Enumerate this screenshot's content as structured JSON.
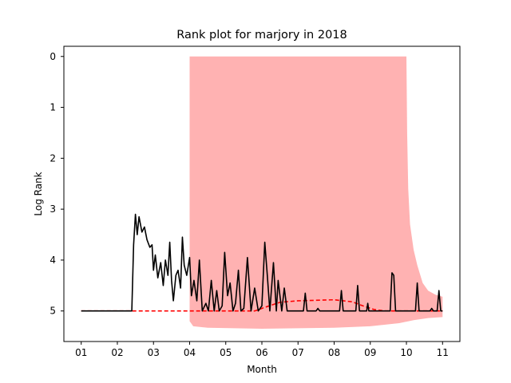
{
  "chart_data": {
    "type": "line",
    "title": "Rank plot for marjory in 2018",
    "xlabel": "Month",
    "ylabel": "Log Rank",
    "x_ticks": [
      {
        "value": 1,
        "label": "01"
      },
      {
        "value": 2,
        "label": "02"
      },
      {
        "value": 3,
        "label": "03"
      },
      {
        "value": 4,
        "label": "04"
      },
      {
        "value": 5,
        "label": "05"
      },
      {
        "value": 6,
        "label": "06"
      },
      {
        "value": 7,
        "label": "07"
      },
      {
        "value": 8,
        "label": "08"
      },
      {
        "value": 9,
        "label": "09"
      },
      {
        "value": 10,
        "label": "10"
      },
      {
        "value": 11,
        "label": "11"
      }
    ],
    "y_ticks": [
      {
        "value": 0,
        "label": "0"
      },
      {
        "value": 1,
        "label": "1"
      },
      {
        "value": 2,
        "label": "2"
      },
      {
        "value": 3,
        "label": "3"
      },
      {
        "value": 4,
        "label": "4"
      },
      {
        "value": 5,
        "label": "5"
      }
    ],
    "xlim": [
      0.52,
      11.48
    ],
    "ylim": [
      5.6,
      -0.2
    ],
    "y_inverted": true,
    "grid": false,
    "legend": "none",
    "series": [
      {
        "style": "solid",
        "color": "#000000",
        "points": [
          [
            1.0,
            5.0
          ],
          [
            2.4,
            5.0
          ],
          [
            2.45,
            3.7
          ],
          [
            2.5,
            3.1
          ],
          [
            2.55,
            3.5
          ],
          [
            2.6,
            3.15
          ],
          [
            2.68,
            3.45
          ],
          [
            2.75,
            3.35
          ],
          [
            2.82,
            3.6
          ],
          [
            2.9,
            3.75
          ],
          [
            2.96,
            3.7
          ],
          [
            3.0,
            4.2
          ],
          [
            3.05,
            3.9
          ],
          [
            3.12,
            4.35
          ],
          [
            3.2,
            4.05
          ],
          [
            3.27,
            4.5
          ],
          [
            3.33,
            4.0
          ],
          [
            3.4,
            4.3
          ],
          [
            3.45,
            3.65
          ],
          [
            3.5,
            4.4
          ],
          [
            3.55,
            4.8
          ],
          [
            3.62,
            4.3
          ],
          [
            3.68,
            4.2
          ],
          [
            3.75,
            4.55
          ],
          [
            3.8,
            3.55
          ],
          [
            3.85,
            4.1
          ],
          [
            3.92,
            4.3
          ],
          [
            4.0,
            3.95
          ],
          [
            4.05,
            4.7
          ],
          [
            4.12,
            4.4
          ],
          [
            4.2,
            4.8
          ],
          [
            4.27,
            4.0
          ],
          [
            4.35,
            5.0
          ],
          [
            4.45,
            4.85
          ],
          [
            4.52,
            5.0
          ],
          [
            4.6,
            4.4
          ],
          [
            4.68,
            5.0
          ],
          [
            4.75,
            4.6
          ],
          [
            4.82,
            5.0
          ],
          [
            4.9,
            4.9
          ],
          [
            4.97,
            3.85
          ],
          [
            5.05,
            4.7
          ],
          [
            5.12,
            4.45
          ],
          [
            5.2,
            5.0
          ],
          [
            5.27,
            4.85
          ],
          [
            5.35,
            4.2
          ],
          [
            5.42,
            5.0
          ],
          [
            5.5,
            4.95
          ],
          [
            5.6,
            3.95
          ],
          [
            5.7,
            5.0
          ],
          [
            5.8,
            4.55
          ],
          [
            5.9,
            5.0
          ],
          [
            6.0,
            4.9
          ],
          [
            6.08,
            3.65
          ],
          [
            6.15,
            4.3
          ],
          [
            6.22,
            5.0
          ],
          [
            6.32,
            4.05
          ],
          [
            6.4,
            5.0
          ],
          [
            6.45,
            4.4
          ],
          [
            6.55,
            5.0
          ],
          [
            6.62,
            4.55
          ],
          [
            6.7,
            5.0
          ],
          [
            7.15,
            5.0
          ],
          [
            7.2,
            4.65
          ],
          [
            7.25,
            5.0
          ],
          [
            7.5,
            5.0
          ],
          [
            7.55,
            4.95
          ],
          [
            7.6,
            5.0
          ],
          [
            8.15,
            5.0
          ],
          [
            8.2,
            4.6
          ],
          [
            8.25,
            5.0
          ],
          [
            8.6,
            5.0
          ],
          [
            8.65,
            4.5
          ],
          [
            8.7,
            5.0
          ],
          [
            8.9,
            5.0
          ],
          [
            8.93,
            4.85
          ],
          [
            8.96,
            5.0
          ],
          [
            9.55,
            5.0
          ],
          [
            9.6,
            4.25
          ],
          [
            9.65,
            4.3
          ],
          [
            9.7,
            5.0
          ],
          [
            10.25,
            5.0
          ],
          [
            10.3,
            4.45
          ],
          [
            10.35,
            5.0
          ],
          [
            10.65,
            5.0
          ],
          [
            10.7,
            4.95
          ],
          [
            10.75,
            5.0
          ],
          [
            10.85,
            5.0
          ],
          [
            10.9,
            4.6
          ],
          [
            10.95,
            5.0
          ],
          [
            11.0,
            5.0
          ]
        ]
      },
      {
        "style": "dashed",
        "color": "#ff0000",
        "points": [
          [
            1.0,
            5.0
          ],
          [
            5.8,
            5.0
          ],
          [
            6.2,
            4.9
          ],
          [
            6.5,
            4.83
          ],
          [
            7.0,
            4.8
          ],
          [
            8.0,
            4.78
          ],
          [
            8.5,
            4.82
          ],
          [
            8.8,
            4.9
          ],
          [
            9.1,
            4.97
          ],
          [
            9.4,
            5.0
          ],
          [
            11.0,
            5.0
          ]
        ]
      }
    ],
    "band": {
      "color": "#ffb2b2",
      "upper": [
        [
          4.0,
          0.0
        ],
        [
          10.0,
          0.0
        ],
        [
          10.02,
          1.5
        ],
        [
          10.05,
          2.6
        ],
        [
          10.1,
          3.3
        ],
        [
          10.2,
          3.8
        ],
        [
          10.3,
          4.1
        ],
        [
          10.45,
          4.45
        ],
        [
          10.6,
          4.6
        ],
        [
          10.8,
          4.68
        ],
        [
          11.0,
          4.72
        ]
      ],
      "lower": [
        [
          11.0,
          5.12
        ],
        [
          10.6,
          5.14
        ],
        [
          10.2,
          5.18
        ],
        [
          9.8,
          5.24
        ],
        [
          9.0,
          5.3
        ],
        [
          8.0,
          5.33
        ],
        [
          6.0,
          5.35
        ],
        [
          4.5,
          5.33
        ],
        [
          4.1,
          5.3
        ],
        [
          4.0,
          5.2
        ]
      ]
    }
  }
}
